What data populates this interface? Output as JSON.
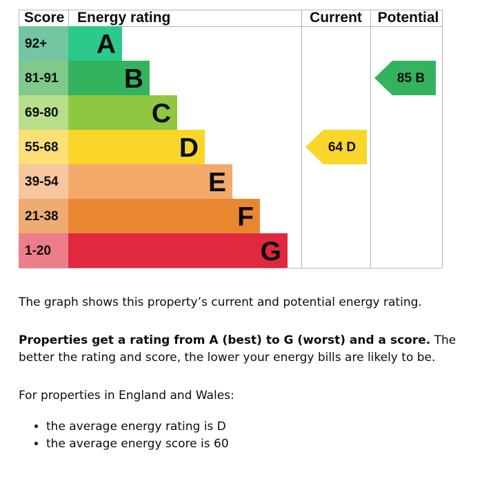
{
  "chart_data": {
    "type": "epc-rating-bar",
    "headers": {
      "score": "Score",
      "energy_rating": "Energy rating",
      "current": "Current",
      "potential": "Potential"
    },
    "bands": [
      {
        "letter": "A",
        "range": "92+",
        "color": "#2cc98a",
        "score_bg": "#73c6a1"
      },
      {
        "letter": "B",
        "range": "81-91",
        "color": "#33b35e",
        "score_bg": "#80c98c"
      },
      {
        "letter": "C",
        "range": "69-80",
        "color": "#8fc740",
        "score_bg": "#b9de8c"
      },
      {
        "letter": "D",
        "range": "55-68",
        "color": "#fad52a",
        "score_bg": "#fce077"
      },
      {
        "letter": "E",
        "range": "39-54",
        "color": "#f3a96a",
        "score_bg": "#f7c69e"
      },
      {
        "letter": "F",
        "range": "21-38",
        "color": "#e98730",
        "score_bg": "#efac72"
      },
      {
        "letter": "G",
        "range": "1-20",
        "color": "#e0283f",
        "score_bg": "#ee7d8b"
      }
    ],
    "current": {
      "score": "64",
      "letter": "D",
      "color": "#fad52a"
    },
    "potential": {
      "score": "85",
      "letter": "B",
      "color": "#33b35e"
    }
  },
  "text": {
    "intro": "The graph shows this property’s current and potential energy rating.",
    "rating_bold": "Properties get a rating from A (best) to G (worst) and a score.",
    "rating_rest": " The better the rating and score, the lower your energy bills are likely to be.",
    "region": "For properties in England and Wales:",
    "avg_items": [
      "the average energy rating is D",
      "the average energy score is 60"
    ]
  }
}
